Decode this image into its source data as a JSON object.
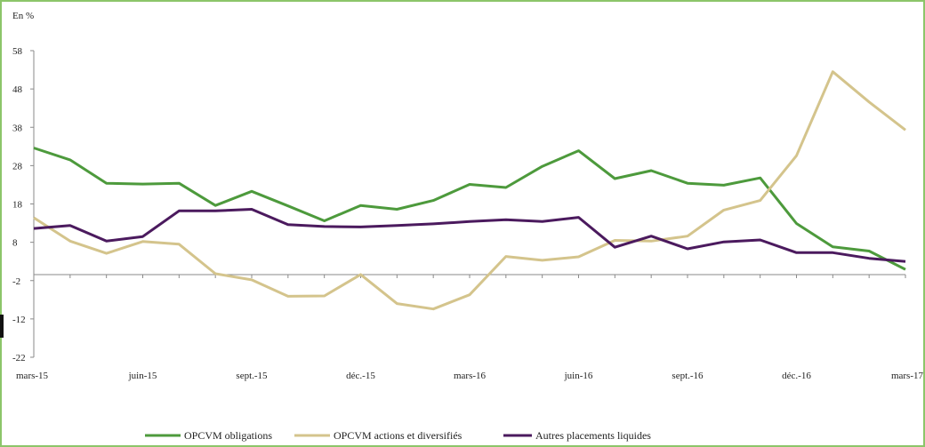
{
  "chart_data": {
    "type": "line",
    "unit_label": "En %",
    "x": [
      "mars-15",
      "avr.-15",
      "mai-15",
      "juin-15",
      "juil.-15",
      "août-15",
      "sept.-15",
      "oct.-15",
      "nov.-15",
      "déc.-15",
      "janv.-16",
      "févr.-16",
      "mars-16",
      "avr.-16",
      "mai-16",
      "juin-16",
      "juil.-16",
      "août-16",
      "sept.-16",
      "oct.-16",
      "nov.-16",
      "déc.-16",
      "janv.-17",
      "févr.-17",
      "mars-17"
    ],
    "x_tick_labels": [
      "mars-15",
      "juin-15",
      "sept.-15",
      "déc.-15",
      "mars-16",
      "juin-16",
      "sept.-16",
      "déc.-16",
      "mars-17"
    ],
    "x_tick_indices": [
      0,
      3,
      6,
      9,
      12,
      15,
      18,
      21,
      24
    ],
    "y_ticks": [
      58,
      48,
      38,
      28,
      18,
      8,
      -2,
      -12,
      -22
    ],
    "ylim": [
      -22,
      58
    ],
    "series": [
      {
        "name": "OPCVM obligations",
        "color": "#4d9a3c",
        "values": [
          32.6,
          29.5,
          23.4,
          23.2,
          23.4,
          17.6,
          21.3,
          17.5,
          13.6,
          17.6,
          16.6,
          18.9,
          23.1,
          22.3,
          27.8,
          31.9,
          24.6,
          26.7,
          23.4,
          22.9,
          24.8,
          12.9,
          6.8,
          5.7,
          0.9
        ]
      },
      {
        "name": "OPCVM actions et diversifiés",
        "color": "#d4c48c",
        "values": [
          14.4,
          8.3,
          5.1,
          8.2,
          7.5,
          -0.2,
          -1.8,
          -6.1,
          -6.0,
          -0.4,
          -8.0,
          -9.4,
          -5.7,
          4.3,
          3.3,
          4.2,
          8.5,
          8.3,
          9.6,
          16.4,
          18.9,
          30.6,
          52.5,
          44.6,
          37.3
        ]
      },
      {
        "name": "Autres placements liquides",
        "color": "#4b1a5e",
        "values": [
          11.6,
          12.4,
          8.3,
          9.5,
          16.2,
          16.2,
          16.6,
          12.6,
          12.1,
          12.0,
          12.4,
          12.8,
          13.4,
          13.9,
          13.4,
          14.5,
          6.7,
          9.6,
          6.3,
          8.1,
          8.6,
          5.3,
          5.3,
          3.8,
          3.0
        ]
      }
    ],
    "grid": false,
    "legend_position": "bottom"
  }
}
